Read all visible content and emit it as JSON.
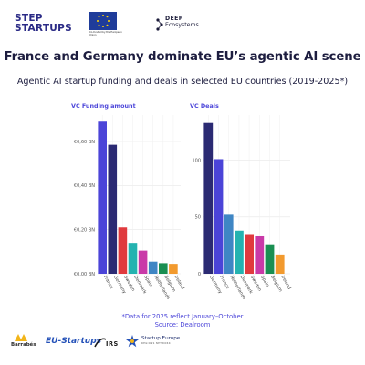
{
  "logos": {
    "step_line1": "STEP",
    "step_line2": "STARTUPS",
    "eu_caption": "Co-funded by the European Union",
    "deep_line1": "DEEP",
    "deep_line2": "Ecosystems",
    "barrabes": "Barrabés",
    "eu_startups": "EU-Startups",
    "irs": "IRS",
    "startup_europe_line1": "Startup Europe",
    "startup_europe_line2": "REGIONS NETWORK"
  },
  "header": {
    "title": "France and Germany dominate EU’s agentic AI scene",
    "subtitle": "Agentic AI startup funding and deals in selected EU countries (2019-2025*)"
  },
  "footer": {
    "note": "*Data for 2025 reflect January–October",
    "source": "Source: Dealroom"
  },
  "chart_data": [
    {
      "type": "bar",
      "title": "VC Funding amount",
      "xlabel": "",
      "ylabel": "",
      "categories": [
        "France",
        "Germany",
        "Sweden",
        "Denmark",
        "Spain",
        "Netherlands",
        "Belgium",
        "Ireland"
      ],
      "values": [
        0.69,
        0.585,
        0.21,
        0.14,
        0.105,
        0.055,
        0.048,
        0.045
      ],
      "colors": [
        "#4b44d8",
        "#2b2a73",
        "#e03a3e",
        "#24b3b0",
        "#c93aa8",
        "#3f86c4",
        "#1a8f52",
        "#f29a2e"
      ],
      "yticks": [
        0,
        0.2,
        0.4,
        0.6
      ],
      "ytick_labels": [
        "€0,00 BN",
        "€0,20 BN",
        "€0,40 BN",
        "€0,60 BN"
      ],
      "ylim": [
        0,
        0.72
      ],
      "grid": true,
      "legend": "none"
    },
    {
      "type": "bar",
      "title": "VC Deals",
      "xlabel": "",
      "ylabel": "",
      "categories": [
        "Germany",
        "France",
        "Netherlands",
        "Denmark",
        "Sweden",
        "Spain",
        "Belgium",
        "Ireland"
      ],
      "values": [
        133,
        101,
        52,
        38,
        35,
        33,
        26,
        17
      ],
      "colors": [
        "#2b2a73",
        "#4b44d8",
        "#3f86c4",
        "#24b3b0",
        "#e03a3e",
        "#c93aa8",
        "#1a8f52",
        "#f29a2e"
      ],
      "yticks": [
        0,
        50,
        100
      ],
      "ytick_labels": [
        "0",
        "50",
        "100"
      ],
      "ylim": [
        0,
        140
      ],
      "grid": true,
      "legend": "none"
    }
  ]
}
